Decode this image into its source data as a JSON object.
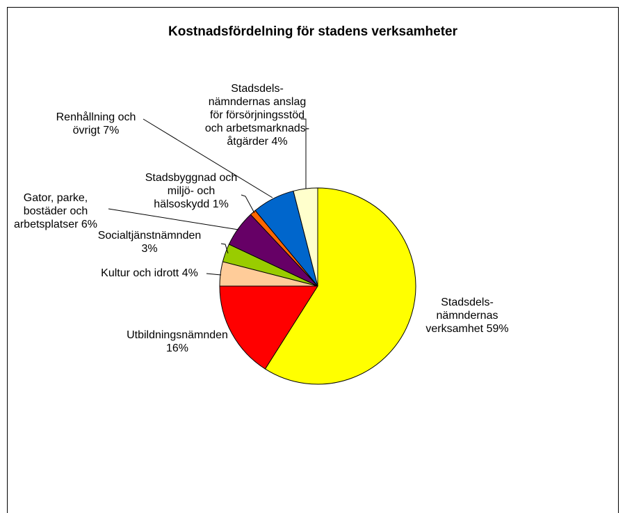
{
  "chart_data": {
    "type": "pie",
    "title": "Kostnadsfördelning för stadens verksamheter",
    "categories": [
      "Stadsdels-nämndernas verksamhet",
      "Utbildningsnämnden",
      "Kultur och idrott",
      "Socialtjänstnämnden",
      "Gator, parke, bostäder och arbetsplatser",
      "Stadsbyggnad och miljö- och hälsoskydd",
      "Renhållning och övrigt",
      "Stadsdels-nämndernas anslag för försörjningsstöd och arbetsmarknads-åtgärder"
    ],
    "values": [
      59,
      16,
      4,
      3,
      6,
      1,
      7,
      4
    ],
    "value_labels": [
      "59%",
      "16%",
      "4%",
      "3%",
      "6%",
      "1%",
      "7%",
      "4%"
    ],
    "colors": [
      "#ffff00",
      "#ff0000",
      "#ffcc99",
      "#99cc00",
      "#660066",
      "#ff6600",
      "#0066cc",
      "#ffffcc"
    ]
  }
}
